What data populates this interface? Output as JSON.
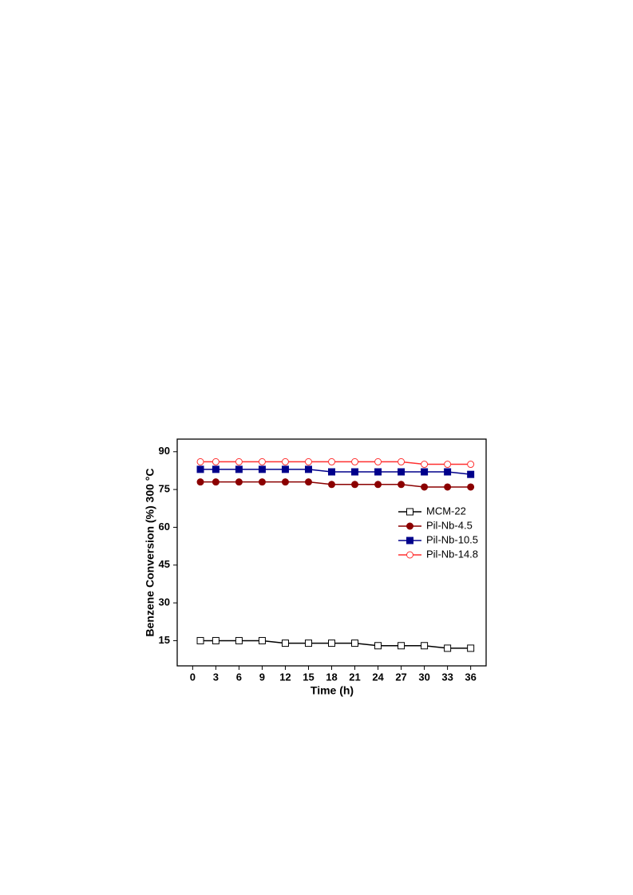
{
  "chart_data": {
    "type": "line",
    "xlabel": "Time (h)",
    "ylabel": "Benzene Conversion (%) 300 °C",
    "x": [
      1,
      3,
      6,
      9,
      12,
      15,
      18,
      21,
      24,
      27,
      30,
      33,
      36
    ],
    "series": [
      {
        "name": "MCM-22",
        "color": "#000000",
        "marker": "square-open",
        "values": [
          15,
          15,
          15,
          15,
          14,
          14,
          14,
          14,
          13,
          13,
          13,
          12,
          12
        ]
      },
      {
        "name": "Pil-Nb-4.5",
        "color": "#8b0000",
        "marker": "circle-filled",
        "values": [
          78,
          78,
          78,
          78,
          78,
          78,
          77,
          77,
          77,
          77,
          76,
          76,
          76
        ]
      },
      {
        "name": "Pil-Nb-10.5",
        "color": "#00008b",
        "marker": "square-filled",
        "values": [
          83,
          83,
          83,
          83,
          83,
          83,
          82,
          82,
          82,
          82,
          82,
          82,
          81
        ]
      },
      {
        "name": "Pil-Nb-14.8",
        "color": "#ff3030",
        "marker": "circle-open",
        "values": [
          86,
          86,
          86,
          86,
          86,
          86,
          86,
          86,
          86,
          86,
          85,
          85,
          85
        ]
      }
    ],
    "xlim": [
      -2,
      38
    ],
    "xticks": [
      0,
      3,
      6,
      9,
      12,
      15,
      18,
      21,
      24,
      27,
      30,
      33,
      36
    ],
    "ylim": [
      5,
      95
    ],
    "yticks": [
      15,
      30,
      45,
      60,
      75,
      90
    ],
    "grid": false,
    "legend": "right"
  }
}
